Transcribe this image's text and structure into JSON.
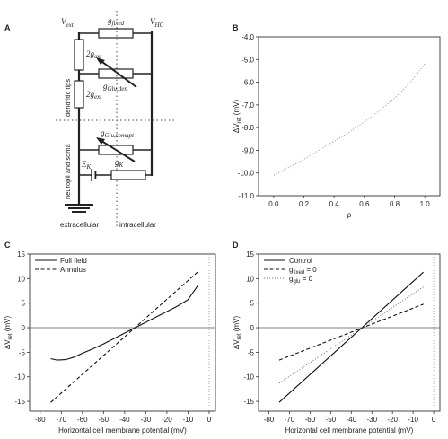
{
  "panels": {
    "a": {
      "letter": "A",
      "labels": {
        "v_ext": "V",
        "v_ext_sub": "ext",
        "v_hc": "V",
        "v_hc_sub": "HC",
        "g_fixed": "g",
        "g_fixed_sub": "fixed",
        "two_g_ext_top": "2g",
        "two_g_ext_top_sub": "ext",
        "g_glu_den": "g",
        "g_glu_den_sub": "Glu,den",
        "two_g_ext_bottom": "2g",
        "two_g_ext_bottom_sub": "ext",
        "g_glu_somapt": "g",
        "g_glu_somapt_sub": "Glu,somapt",
        "e_k": "E",
        "e_k_sub": "K",
        "g_k": "g",
        "g_k_sub": "K",
        "dendritic_tips": "dendritic tips",
        "neuropil_soma": "neuropil and soma",
        "extracellular": "extracellular",
        "intracellular": "intracellular"
      }
    },
    "b": {
      "letter": "B"
    },
    "c": {
      "letter": "C"
    },
    "d": {
      "letter": "D"
    }
  },
  "chart_data": [
    {
      "panel": "B",
      "type": "line",
      "xlabel": "ρ",
      "ylabel": "ΔV",
      "ylabel_sub": "ret",
      "ylabel_unit": " (mV)",
      "xlim": [
        -0.1,
        1.1
      ],
      "ylim": [
        -11.0,
        -4.0
      ],
      "xticks": [
        "0.0",
        "0.2",
        "0.4",
        "0.6",
        "0.8",
        "1.0"
      ],
      "yticks": [
        "-4.0",
        "-5.0",
        "-6.0",
        "-7.0",
        "-8.0",
        "-9.0",
        "-10.0",
        "-11.0"
      ],
      "series": [
        {
          "style": "dotted",
          "x": [
            0.0,
            0.1,
            0.2,
            0.3,
            0.4,
            0.5,
            0.6,
            0.7,
            0.8,
            0.9,
            1.0
          ],
          "y": [
            -10.1,
            -9.75,
            -9.4,
            -9.0,
            -8.6,
            -8.2,
            -7.75,
            -7.25,
            -6.7,
            -6.05,
            -5.2
          ]
        }
      ]
    },
    {
      "panel": "C",
      "type": "line",
      "xlabel": "Horizontal cell membrane potential (mV)",
      "ylabel": "ΔV",
      "ylabel_sub": "ret",
      "ylabel_unit": " (mV)",
      "xlim": [
        -85,
        3
      ],
      "ylim": [
        -17,
        15
      ],
      "xticks": [
        "-80",
        "-70",
        "-60",
        "-50",
        "-40",
        "-30",
        "-20",
        "-10",
        "0"
      ],
      "yticks": [
        "15",
        "10",
        "5",
        "0",
        "-5",
        "-10",
        "-15"
      ],
      "legend_position": "top-left",
      "series": [
        {
          "name": "Full field",
          "style": "solid",
          "x": [
            -75,
            -72,
            -68,
            -64,
            -60,
            -55,
            -50,
            -45,
            -40,
            -35,
            -30,
            -25,
            -20,
            -15,
            -10,
            -5
          ],
          "y": [
            -6.3,
            -6.6,
            -6.5,
            -6.0,
            -5.2,
            -4.3,
            -3.3,
            -2.2,
            -1.1,
            0.0,
            1.1,
            2.2,
            3.3,
            4.4,
            5.7,
            8.8
          ]
        },
        {
          "name": "Annulus",
          "style": "dashed",
          "x": [
            -75,
            -5
          ],
          "y": [
            -15.2,
            11.5
          ]
        }
      ]
    },
    {
      "panel": "D",
      "type": "line",
      "xlabel": "Horizontal cell membrane potential (mV)",
      "ylabel": "ΔV",
      "ylabel_sub": "ret",
      "ylabel_unit": " (mV)",
      "xlim": [
        -85,
        3
      ],
      "ylim": [
        -17,
        15
      ],
      "xticks": [
        "-80",
        "-70",
        "-60",
        "-50",
        "-40",
        "-30",
        "-20",
        "-10",
        "0"
      ],
      "yticks": [
        "15",
        "10",
        "5",
        "0",
        "-5",
        "-10",
        "-15"
      ],
      "legend_position": "top-left",
      "series": [
        {
          "name": "Control",
          "style": "solid",
          "x": [
            -75,
            -5
          ],
          "y": [
            -15.2,
            11.3
          ]
        },
        {
          "name": "g",
          "name_sub": "fixed",
          "name_suffix": " = 0",
          "style": "dashed",
          "x": [
            -75,
            -5
          ],
          "y": [
            -6.6,
            4.8
          ]
        },
        {
          "name": "g",
          "name_sub": "glu",
          "name_suffix": " = 0",
          "style": "dotted",
          "x": [
            -75,
            -5
          ],
          "y": [
            -11.3,
            8.3
          ]
        }
      ]
    }
  ]
}
